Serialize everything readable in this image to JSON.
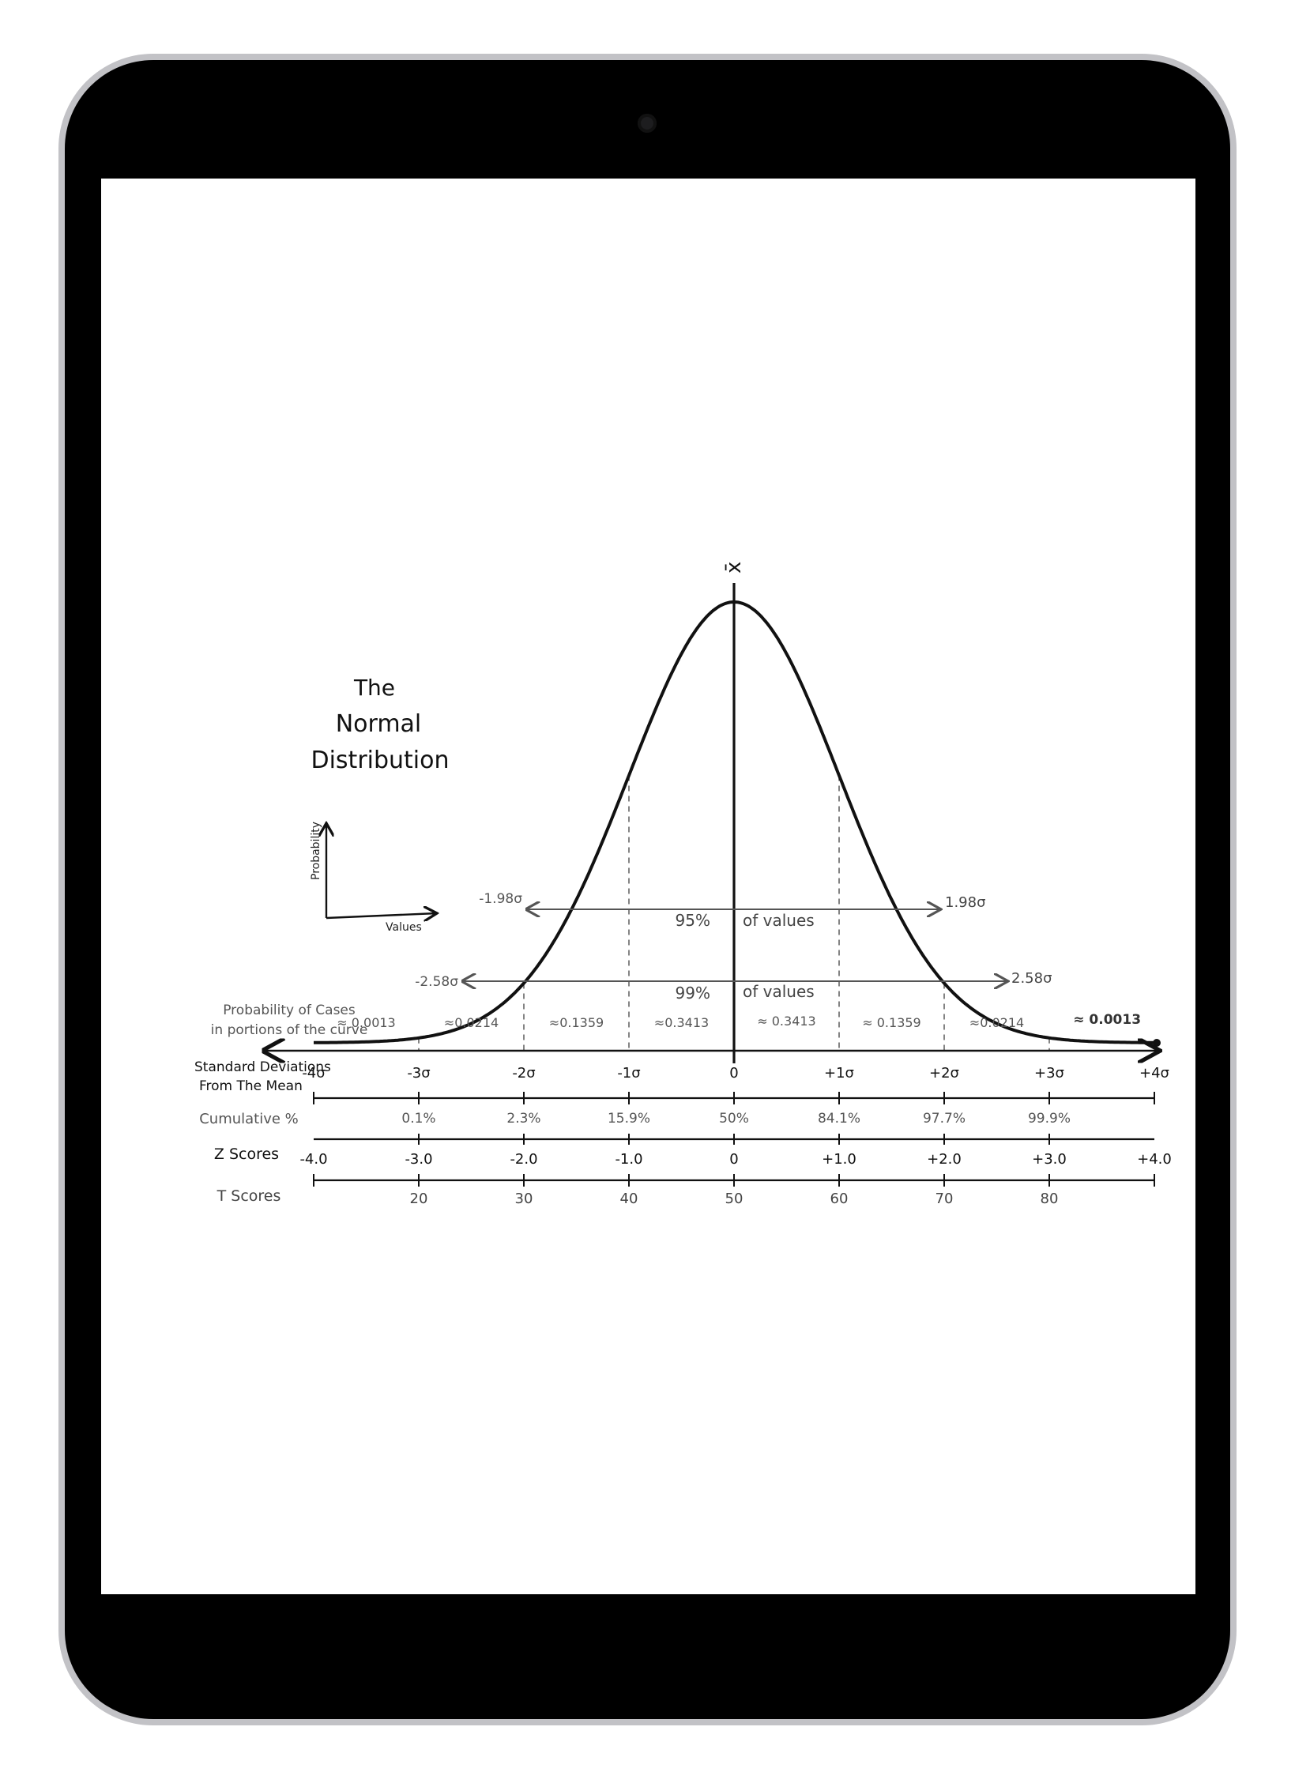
{
  "title": [
    "The",
    "Normal",
    "Distribution"
  ],
  "mini_axes": {
    "ylabel": "Probability",
    "xlabel": "Values"
  },
  "mean_symbol": "x̄",
  "ranges": {
    "r95": {
      "left": "-1.98σ",
      "right": "1.98σ",
      "pct": "95%",
      "text": "of values"
    },
    "r99": {
      "left": "-2.58σ",
      "right": "2.58σ",
      "pct": "99%",
      "text": "of values"
    }
  },
  "prob_cases_label": [
    "Probability of Cases",
    "in portions of the curve"
  ],
  "probabilities": [
    "≈ 0.0013",
    "≈0.0214",
    "≈0.1359",
    "≈0.3413",
    "≈ 0.3413",
    "≈ 0.1359",
    "≈0.0214",
    "≈ 0.0013"
  ],
  "row_labels": {
    "sd": [
      "Standard Deviations",
      "From The Mean"
    ],
    "cumulative": "Cumulative %",
    "z": "Z Scores",
    "t": "T Scores"
  },
  "sd_ticks": [
    "-4σ",
    "-3σ",
    "-2σ",
    "-1σ",
    "0",
    "+1σ",
    "+2σ",
    "+3σ",
    "+4σ"
  ],
  "cumulative": [
    "0.1%",
    "2.3%",
    "15.9%",
    "50%",
    "84.1%",
    "97.7%",
    "99.9%"
  ],
  "z_scores": [
    "-4.0",
    "-3.0",
    "-2.0",
    "-1.0",
    "0",
    "+1.0",
    "+2.0",
    "+3.0",
    "+4.0"
  ],
  "t_scores": [
    "20",
    "30",
    "40",
    "50",
    "60",
    "70",
    "80"
  ],
  "chart_data": {
    "type": "area",
    "title": "The Normal Distribution",
    "xlabel": "Values",
    "ylabel": "Probability",
    "curve": "standard normal density",
    "x_range": [
      -4,
      4
    ],
    "x_ticks": [
      -4,
      -3,
      -2,
      -1,
      0,
      1,
      2,
      3,
      4
    ],
    "mean": 0,
    "range_markers": [
      {
        "from": -1.98,
        "to": 1.98,
        "label": "95% of values"
      },
      {
        "from": -2.58,
        "to": 2.58,
        "label": "99% of values"
      }
    ],
    "segments": [
      {
        "from": -4,
        "to": -3,
        "probability": 0.0013
      },
      {
        "from": -3,
        "to": -2,
        "probability": 0.0214
      },
      {
        "from": -2,
        "to": -1,
        "probability": 0.1359
      },
      {
        "from": -1,
        "to": 0,
        "probability": 0.3413
      },
      {
        "from": 0,
        "to": 1,
        "probability": 0.3413
      },
      {
        "from": 1,
        "to": 2,
        "probability": 0.1359
      },
      {
        "from": 2,
        "to": 3,
        "probability": 0.0214
      },
      {
        "from": 3,
        "to": 4,
        "probability": 0.0013
      }
    ]
  }
}
